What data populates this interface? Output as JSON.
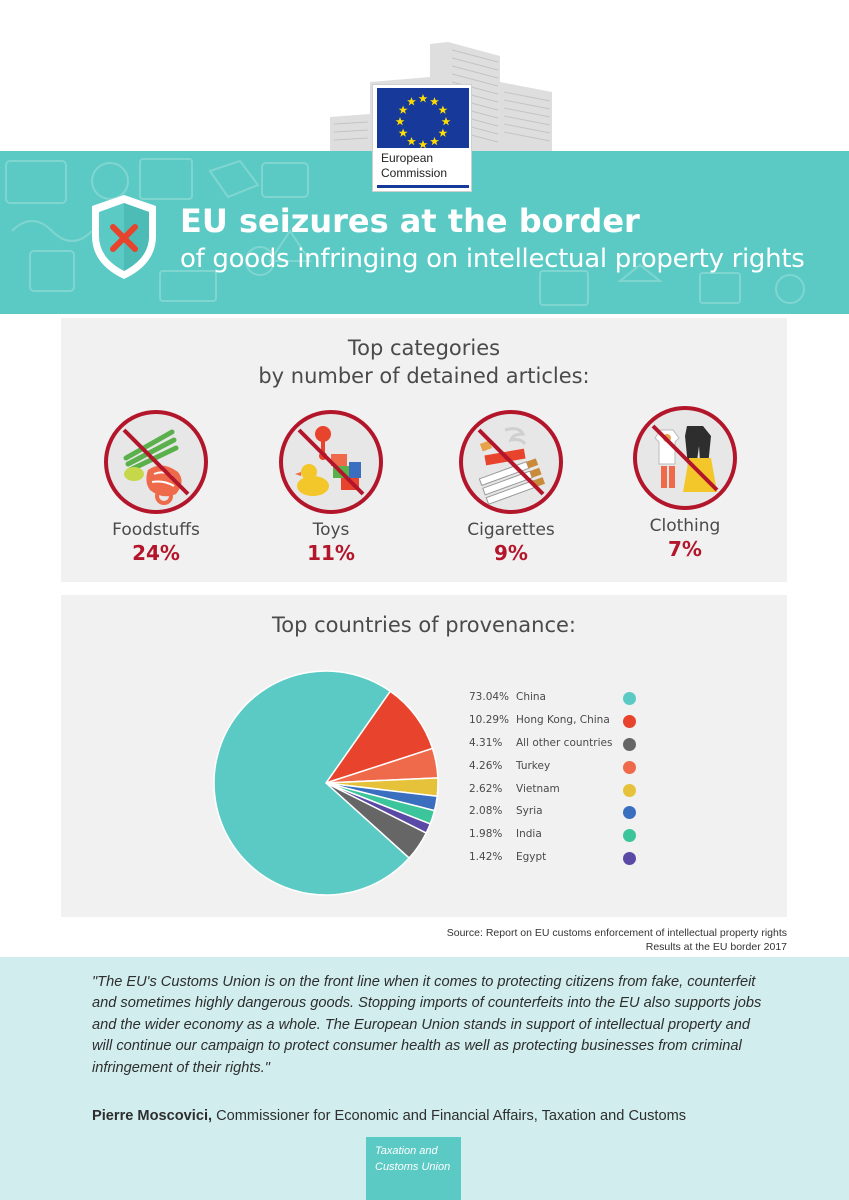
{
  "header": {
    "org_line1": "European",
    "org_line2": "Commission",
    "title": "EU seizures at the border",
    "subtitle": "of goods infringing on intellectual property rights"
  },
  "categories_panel": {
    "title_line1": "Top categories",
    "title_line2": "by number of detained articles:",
    "items": [
      {
        "name": "Foodstuffs",
        "value": "24%",
        "icon": "foodstuffs-icon"
      },
      {
        "name": "Toys",
        "value": "11%",
        "icon": "toys-icon"
      },
      {
        "name": "Cigarettes",
        "value": "9%",
        "icon": "cigarettes-icon"
      },
      {
        "name": "Clothing",
        "value": "7%",
        "icon": "clothing-icon"
      }
    ]
  },
  "countries_panel": {
    "title": "Top countries of provenance:"
  },
  "chart_data": {
    "type": "pie",
    "title": "Top countries of provenance:",
    "legend_position": "right",
    "slices": [
      {
        "label": "China",
        "value": 73.04,
        "display": "73.04%",
        "color": "#5ccac4"
      },
      {
        "label": "Hong Kong, China",
        "value": 10.29,
        "display": "10.29%",
        "color": "#e8432d"
      },
      {
        "label": "All other countries",
        "value": 4.31,
        "display": "4.31%",
        "color": "#666666"
      },
      {
        "label": "Turkey",
        "value": 4.26,
        "display": "4.26%",
        "color": "#ee6a4b"
      },
      {
        "label": "Vietnam",
        "value": 2.62,
        "display": "2.62%",
        "color": "#e6c23a"
      },
      {
        "label": "Syria",
        "value": 2.08,
        "display": "2.08%",
        "color": "#3a6fbf"
      },
      {
        "label": "India",
        "value": 1.98,
        "display": "1.98%",
        "color": "#3cc49a"
      },
      {
        "label": "Egypt",
        "value": 1.42,
        "display": "1.42%",
        "color": "#5a4aa6"
      }
    ],
    "slice_order_clockwise_from_top": [
      "Hong Kong, China",
      "Turkey",
      "Vietnam",
      "Syria",
      "India",
      "Egypt",
      "All other countries",
      "China"
    ]
  },
  "source": {
    "line1": "Source: Report on EU customs enforcement of intellectual property rights",
    "line2": "Results at the EU border 2017"
  },
  "quote": {
    "text": "\"The EU's Customs Union is on the front line when it comes to protecting citizens from fake, counterfeit and sometimes highly dangerous goods. Stopping imports of counterfeits into the EU also supports jobs and the wider economy as a whole. The European Union stands in support of intellectual property and will continue our campaign to protect consumer health as well as protecting businesses from criminal infringement of their rights.\"",
    "author": "Pierre Moscovici,",
    "author_role": " Commissioner for Economic and Financial Affairs, Taxation and Customs"
  },
  "footer": {
    "line1": "Taxation and",
    "line2": "Customs Union"
  },
  "colors": {
    "accent": "#5ccac4",
    "highlight": "#b3162b",
    "panel": "#f1f1f1",
    "quote_bg": "#d1edee",
    "eu_blue": "#173a9a",
    "eu_gold": "#ffdd00"
  }
}
